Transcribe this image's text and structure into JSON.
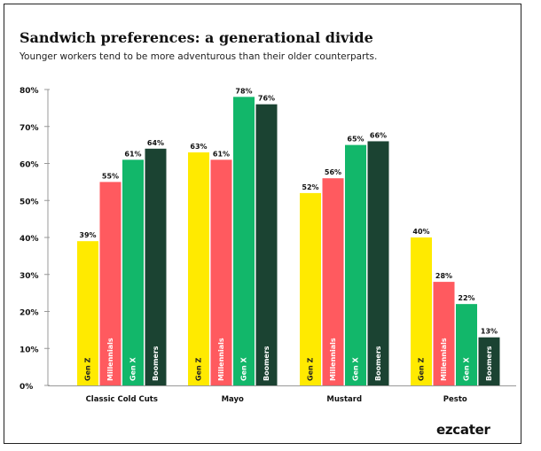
{
  "title": "Sandwich preferences: a generational divide",
  "subtitle": "Younger workers tend to be more adventurous than their older counterparts.",
  "brand": "ezcater",
  "colors": {
    "gen_z": "#FFEA00",
    "millennials": "#FF5A5F",
    "gen_x": "#12B76A",
    "boomers": "#1B4332",
    "axis": "#999999",
    "text": "#111111"
  },
  "chart_data": {
    "type": "bar",
    "title": "Sandwich preferences: a generational divide",
    "subtitle": "Younger workers tend to be more adventurous than their older counterparts.",
    "categories": [
      "Classic Cold Cuts",
      "Mayo",
      "Mustard",
      "Pesto"
    ],
    "series": [
      {
        "name": "Gen Z",
        "color": "#FFEA00",
        "values": [
          39,
          63,
          52,
          40
        ]
      },
      {
        "name": "Millennials",
        "color": "#FF5A5F",
        "values": [
          55,
          61,
          56,
          28
        ]
      },
      {
        "name": "Gen X",
        "color": "#12B76A",
        "values": [
          61,
          78,
          65,
          22
        ]
      },
      {
        "name": "Boomers",
        "color": "#1B4332",
        "values": [
          64,
          76,
          66,
          13
        ]
      }
    ],
    "value_suffix": "%",
    "yticks": [
      "0%",
      "10%",
      "20%",
      "30%",
      "40%",
      "50%",
      "60%",
      "70%",
      "80%"
    ],
    "ylim": [
      0,
      80
    ],
    "xlabel": "",
    "ylabel": "",
    "grid": false,
    "legend": "series names printed vertically inside bars"
  }
}
